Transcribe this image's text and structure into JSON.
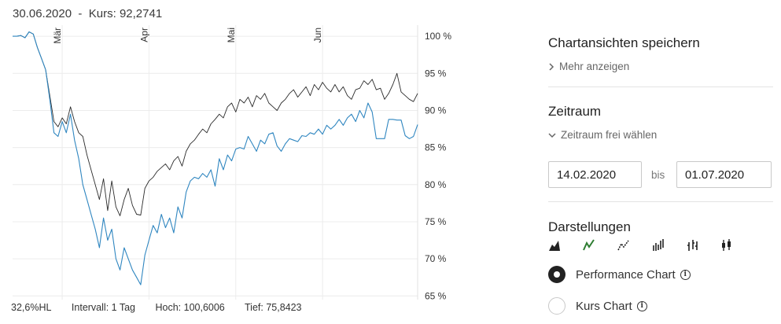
{
  "header": {
    "date": "30.06.2020",
    "separator": "-",
    "kurs_label": "Kurs:",
    "kurs_value": "92,2741"
  },
  "footer": {
    "range_mode": "32,6%HL",
    "intervall": "Intervall: 1 Tag",
    "hoch": "Hoch: 100,6006",
    "tief": "Tief: 75,8423"
  },
  "chart_data": {
    "type": "line",
    "x_tick_labels": [
      "Mär",
      "Apr",
      "Mai",
      "Jun"
    ],
    "y_tick_labels": [
      "100 %",
      "95 %",
      "90 %",
      "85 %",
      "80 %",
      "75 %",
      "70 %",
      "65 %"
    ],
    "y_ticks": [
      100,
      95,
      90,
      85,
      80,
      75,
      70,
      65
    ],
    "ylim": [
      64.5,
      101.5
    ],
    "x_range": [
      0,
      98
    ],
    "month_starts": [
      12,
      33,
      54,
      75
    ],
    "grid": true,
    "colors": {
      "series_1": "#2b2b2b",
      "series_2": "#2f86c0"
    },
    "series": [
      {
        "values": [
          100.0,
          100.0,
          100.1,
          99.8,
          100.6,
          100.3,
          98.5,
          97.0,
          95.5,
          92.0,
          88.5,
          87.8,
          89.0,
          88.2,
          90.5,
          88.5,
          87.0,
          86.5,
          84.0,
          82.0,
          80.0,
          78.0,
          80.8,
          76.5,
          80.5,
          77.0,
          75.8,
          78.0,
          79.5,
          77.2,
          76.0,
          75.9,
          79.5,
          80.5,
          81.0,
          81.8,
          82.3,
          82.8,
          82.0,
          83.2,
          83.8,
          82.5,
          84.5,
          85.5,
          86.0,
          86.8,
          87.5,
          87.0,
          88.2,
          88.8,
          89.5,
          89.0,
          90.5,
          91.0,
          89.8,
          91.5,
          91.0,
          91.8,
          90.5,
          92.0,
          91.5,
          92.3,
          91.0,
          90.5,
          90.0,
          91.0,
          91.5,
          92.3,
          92.8,
          91.8,
          92.5,
          93.2,
          92.0,
          93.5,
          92.8,
          93.8,
          93.0,
          92.5,
          93.5,
          92.5,
          93.2,
          92.0,
          91.5,
          92.8,
          93.0,
          94.0,
          93.5,
          94.2,
          92.8,
          93.0,
          91.5,
          92.3,
          93.5,
          95.0,
          92.5,
          92.0,
          91.5,
          91.2,
          92.3
        ]
      },
      {
        "values": [
          100.0,
          100.0,
          100.1,
          99.8,
          100.6,
          100.3,
          98.5,
          97.0,
          95.5,
          91.5,
          87.0,
          86.5,
          88.5,
          87.0,
          89.5,
          86.0,
          83.5,
          80.0,
          78.0,
          76.0,
          74.0,
          71.5,
          75.5,
          72.5,
          74.0,
          70.0,
          68.5,
          71.5,
          70.0,
          68.5,
          67.5,
          66.5,
          70.5,
          72.5,
          74.5,
          73.5,
          76.0,
          74.2,
          75.5,
          73.5,
          77.0,
          75.5,
          79.0,
          80.5,
          81.0,
          80.8,
          81.5,
          81.0,
          82.0,
          79.8,
          83.5,
          82.0,
          84.0,
          83.2,
          84.8,
          85.0,
          84.8,
          86.5,
          85.5,
          84.5,
          86.0,
          85.5,
          86.8,
          87.0,
          85.2,
          84.5,
          85.5,
          86.2,
          86.0,
          85.8,
          86.6,
          86.5,
          87.0,
          86.8,
          87.5,
          86.8,
          88.0,
          87.5,
          88.0,
          88.8,
          88.0,
          89.0,
          89.5,
          88.5,
          90.0,
          89.0,
          91.0,
          89.8,
          86.2,
          86.2,
          86.2,
          88.8,
          88.8,
          88.7,
          88.7,
          86.6,
          86.2,
          86.5,
          88.1
        ]
      }
    ]
  },
  "sidebar": {
    "save_title": "Chartansichten speichern",
    "more_link": "Mehr anzeigen",
    "zeitraum_title": "Zeitraum",
    "zeitraum_link": "Zeitraum frei wählen",
    "date_from": "14.02.2020",
    "bis_label": "bis",
    "date_to": "01.07.2020",
    "darstellungen_title": "Darstellungen",
    "chart_type_icons": [
      "mountain-chart-icon",
      "line-chart-icon",
      "dotted-line-chart-icon",
      "ohlc-bars-icon",
      "hlc-bars-icon",
      "candlestick-chart-icon"
    ],
    "active_icon_color": "#2e7d32",
    "radio_options": [
      {
        "label": "Performance Chart",
        "checked": true
      },
      {
        "label": "Kurs Chart",
        "checked": false
      }
    ]
  }
}
